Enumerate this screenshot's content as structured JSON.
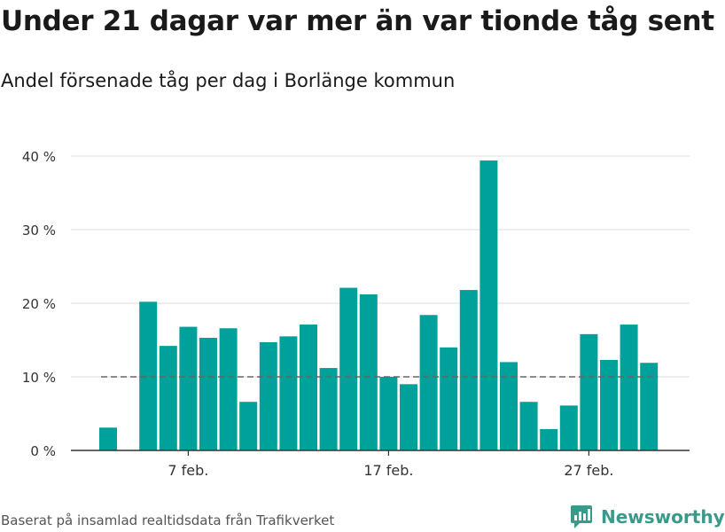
{
  "header": {
    "title": "Under 21 dagar var mer än var tionde tåg sent",
    "subtitle": "Andel försenade tåg per dag i Borlänge kommun"
  },
  "footer": {
    "source": "Baserat på insamlad realtidsdata från Trafikverket"
  },
  "brand": {
    "name": "Newsworthy",
    "logo_icon": "newsworthy-chart-icon",
    "color": "#3a9a8a"
  },
  "chart_data": {
    "type": "bar",
    "x_first_day": 1,
    "x_last_day": 29,
    "month": "feb.",
    "x_ticks": [
      {
        "day": 7,
        "label": "7 feb."
      },
      {
        "day": 17,
        "label": "17 feb."
      },
      {
        "day": 27,
        "label": "27 feb."
      }
    ],
    "bars": [
      {
        "day": 3,
        "value": 3.1
      },
      {
        "day": 5,
        "value": 20.2
      },
      {
        "day": 6,
        "value": 14.2
      },
      {
        "day": 7,
        "value": 16.8
      },
      {
        "day": 8,
        "value": 15.3
      },
      {
        "day": 9,
        "value": 16.6
      },
      {
        "day": 10,
        "value": 6.6
      },
      {
        "day": 11,
        "value": 14.7
      },
      {
        "day": 12,
        "value": 15.5
      },
      {
        "day": 13,
        "value": 17.1
      },
      {
        "day": 14,
        "value": 11.2
      },
      {
        "day": 15,
        "value": 22.1
      },
      {
        "day": 16,
        "value": 21.2
      },
      {
        "day": 17,
        "value": 10.0
      },
      {
        "day": 18,
        "value": 9.0
      },
      {
        "day": 19,
        "value": 18.4
      },
      {
        "day": 20,
        "value": 14.0
      },
      {
        "day": 21,
        "value": 21.8
      },
      {
        "day": 22,
        "value": 39.4
      },
      {
        "day": 23,
        "value": 12.0
      },
      {
        "day": 24,
        "value": 6.6
      },
      {
        "day": 25,
        "value": 2.9
      },
      {
        "day": 26,
        "value": 6.1
      },
      {
        "day": 27,
        "value": 15.8
      },
      {
        "day": 28,
        "value": 12.3
      },
      {
        "day": 29,
        "value": 17.1
      },
      {
        "day": 30,
        "value": 11.9
      }
    ],
    "reference_line": {
      "value": 10,
      "style": "dashed",
      "from_day": 3,
      "to_day": 30
    },
    "ylim": [
      0,
      40
    ],
    "y_ticks": [
      {
        "value": 0,
        "label": "0 %"
      },
      {
        "value": 10,
        "label": "10 %"
      },
      {
        "value": 20,
        "label": "20 %"
      },
      {
        "value": 30,
        "label": "30 %"
      },
      {
        "value": 40,
        "label": "40 %"
      }
    ],
    "grid": true,
    "bar_color": "#00a19a",
    "grid_color": "#dcdcdc",
    "reference_color": "#666666"
  }
}
